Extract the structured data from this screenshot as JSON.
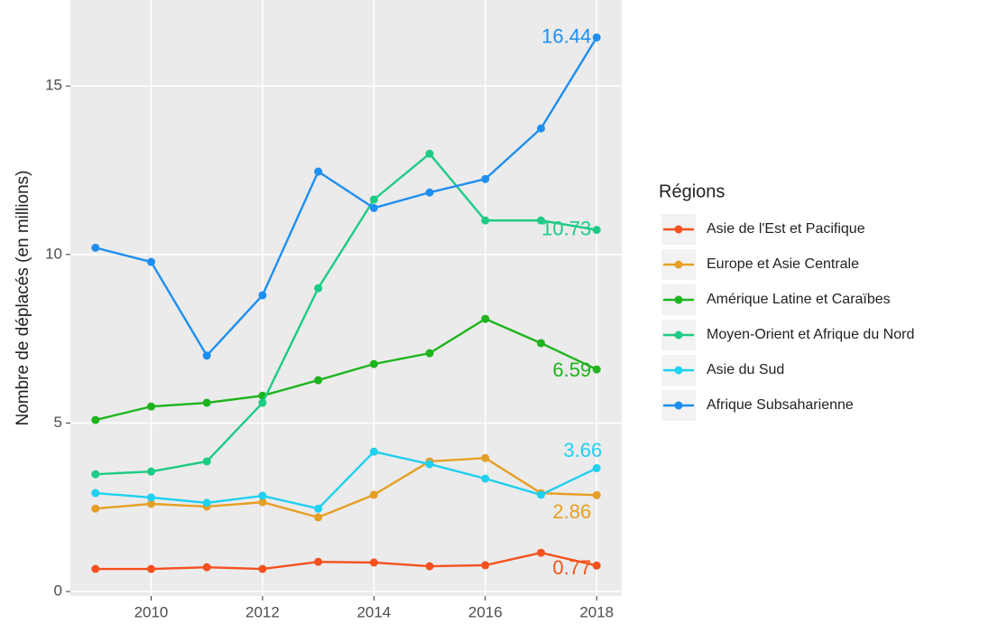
{
  "chart_data": {
    "type": "line",
    "y_label": "Nombre de déplacés (en millions)",
    "legend_title": "Régions",
    "x": [
      2009,
      2010,
      2011,
      2012,
      2013,
      2014,
      2015,
      2016,
      2017,
      2018
    ],
    "xlim": [
      2008.55,
      2018.45
    ],
    "xticks": [
      2010,
      2012,
      2014,
      2016,
      2018
    ],
    "ylim": [
      -0.12,
      17.23
    ],
    "yticks": [
      0,
      5,
      10,
      15
    ],
    "grid": true,
    "legend": "right",
    "series": [
      {
        "name": "Asie de l'Est et Pacifique",
        "color": "#f4511e",
        "values": [
          0.67,
          0.67,
          0.72,
          0.67,
          0.88,
          0.86,
          0.75,
          0.78,
          1.15,
          0.77
        ]
      },
      {
        "name": "Europe et Asie Centrale",
        "color": "#e69f25",
        "values": [
          2.46,
          2.6,
          2.52,
          2.65,
          2.2,
          2.87,
          3.86,
          3.96,
          2.92,
          2.86
        ]
      },
      {
        "name": "Amérique Latine et Caraïbes",
        "color": "#1db41d",
        "values": [
          5.09,
          5.49,
          5.6,
          5.81,
          6.27,
          6.75,
          7.07,
          8.09,
          7.37,
          6.59
        ]
      },
      {
        "name": "Moyen-Orient et Afrique du Nord",
        "color": "#1ecb85",
        "values": [
          3.48,
          3.56,
          3.86,
          5.6,
          9.0,
          11.63,
          12.99,
          11.01,
          11.01,
          10.73
        ]
      },
      {
        "name": "Asie du Sud",
        "color": "#1fd0f0",
        "values": [
          2.92,
          2.79,
          2.63,
          2.84,
          2.46,
          4.15,
          3.78,
          3.35,
          2.87,
          3.66
        ]
      },
      {
        "name": "Afrique Subsaharienne",
        "color": "#1e8ff0",
        "values": [
          10.2,
          9.78,
          7.0,
          8.79,
          12.46,
          11.38,
          11.84,
          12.24,
          13.74,
          16.44
        ]
      }
    ]
  }
}
